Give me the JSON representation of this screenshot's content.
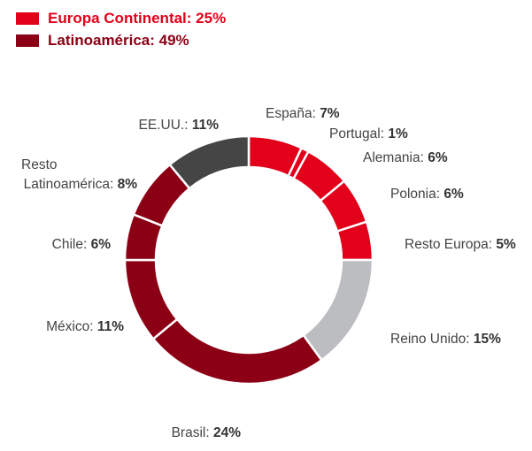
{
  "legend": [
    {
      "label": "Europa Continental: 25%",
      "color": "#e2001a"
    },
    {
      "label": "Latinoamérica: 49%",
      "color": "#8c0015"
    }
  ],
  "chart_data": {
    "type": "pie",
    "donut": true,
    "slices": [
      {
        "name": "España",
        "label": "España: ",
        "pct_text": "7%",
        "value": 7,
        "color": "#e2001a"
      },
      {
        "name": "Portugal",
        "label": "Portugal: ",
        "pct_text": "1%",
        "value": 1,
        "color": "#e2001a"
      },
      {
        "name": "Alemania",
        "label": "Alemania: ",
        "pct_text": "6%",
        "value": 6,
        "color": "#e2001a"
      },
      {
        "name": "Polonia",
        "label": "Polonia: ",
        "pct_text": "6%",
        "value": 6,
        "color": "#e2001a"
      },
      {
        "name": "Resto Europa",
        "label": "Resto Europa: ",
        "pct_text": "5%",
        "value": 5,
        "color": "#e2001a"
      },
      {
        "name": "Reino Unido",
        "label": "Reino Unido: ",
        "pct_text": "15%",
        "value": 15,
        "color": "#bcbdc0"
      },
      {
        "name": "Brasil",
        "label": "Brasil: ",
        "pct_text": "24%",
        "value": 24,
        "color": "#8c0015"
      },
      {
        "name": "México",
        "label": "México: ",
        "pct_text": "11%",
        "value": 11,
        "color": "#8c0015"
      },
      {
        "name": "Chile",
        "label": "Chile: ",
        "pct_text": "6%",
        "value": 6,
        "color": "#8c0015"
      },
      {
        "name": "Resto Latinoamérica",
        "label": "Latinoamérica: ",
        "label_line1": "Resto",
        "pct_text": "8%",
        "value": 8,
        "color": "#8c0015"
      },
      {
        "name": "EE.UU.",
        "label": "EE.UU.: ",
        "pct_text": "11%",
        "value": 11,
        "color": "#454545"
      }
    ]
  }
}
